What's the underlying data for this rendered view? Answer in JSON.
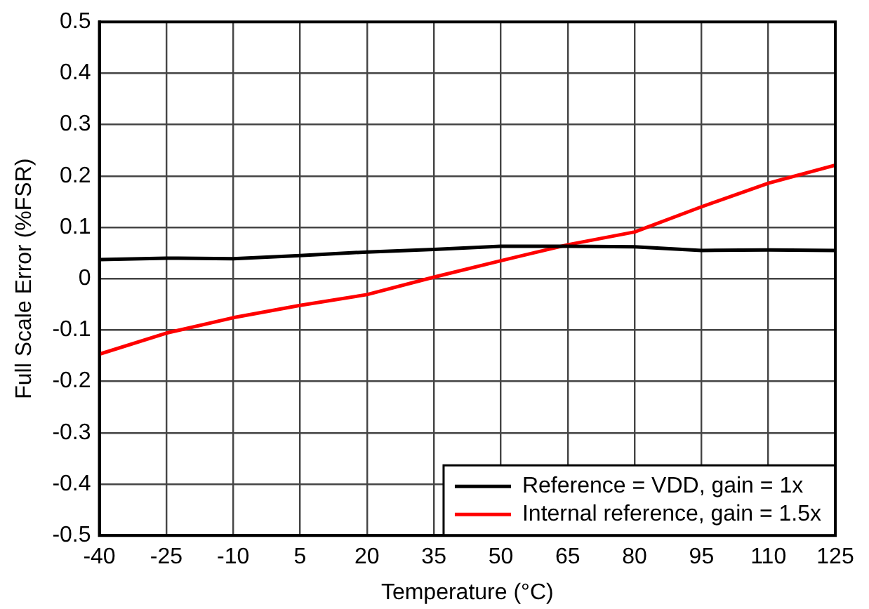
{
  "chart_data": {
    "type": "line",
    "xlabel": "Temperature (°C)",
    "ylabel": "Full Scale Error (%FSR)",
    "x": [
      -40,
      -25,
      -10,
      5,
      20,
      35,
      50,
      65,
      80,
      95,
      110,
      125
    ],
    "series": [
      {
        "name": "Reference = VDD, gain = 1x",
        "color": "#000000",
        "values": [
          0.037,
          0.04,
          0.039,
          0.045,
          0.052,
          0.057,
          0.063,
          0.063,
          0.062,
          0.055,
          0.056,
          0.055
        ]
      },
      {
        "name": "Internal reference, gain = 1.5x",
        "color": "#ff0000",
        "values": [
          -0.147,
          -0.106,
          -0.076,
          -0.052,
          -0.031,
          0.003,
          0.035,
          0.066,
          0.091,
          0.14,
          0.186,
          0.221
        ]
      }
    ],
    "xlim": [
      -40,
      125
    ],
    "xticks": [
      -40,
      -25,
      -10,
      5,
      20,
      35,
      50,
      65,
      80,
      95,
      110,
      125
    ],
    "ylim": [
      -0.5,
      0.5
    ],
    "yticks": [
      -0.5,
      -0.4,
      -0.3,
      -0.2,
      -0.1,
      0,
      0.1,
      0.2,
      0.3,
      0.4,
      0.5
    ],
    "grid": true,
    "legend": "bottom right",
    "marker": "none",
    "line_style": "solid"
  }
}
